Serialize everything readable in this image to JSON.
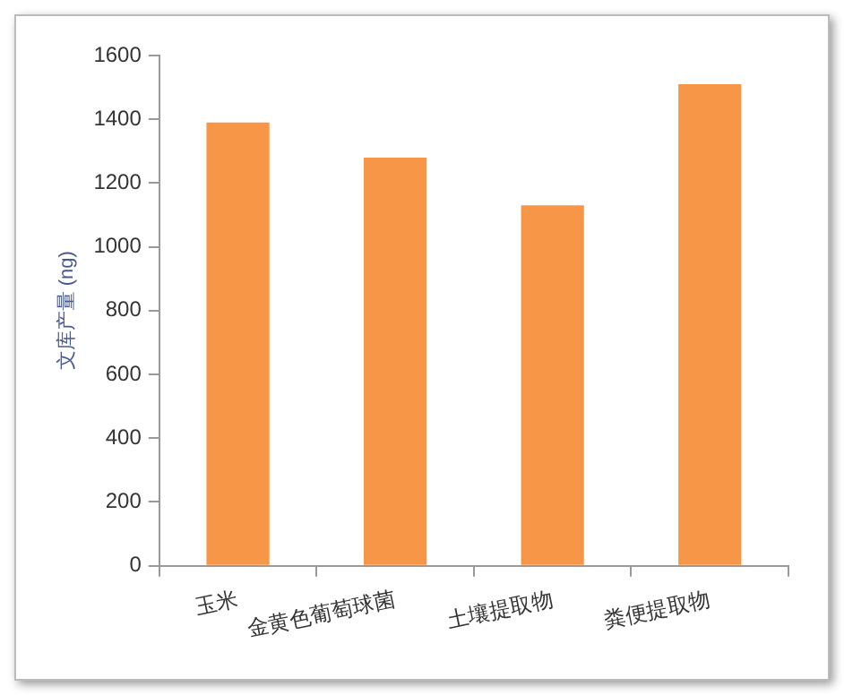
{
  "chart_data": {
    "type": "bar",
    "ylabel": "文库产量 (ng)",
    "categories": [
      "玉米",
      "金黄色葡萄球菌",
      "土壤提取物",
      "粪便提取物"
    ],
    "values": [
      1390,
      1280,
      1130,
      1510
    ],
    "color": "#f79646",
    "ylim": [
      0,
      1600
    ],
    "yticks": [
      0,
      200,
      400,
      600,
      800,
      1000,
      1200,
      1400,
      1600
    ],
    "grid": false,
    "legend": false
  }
}
